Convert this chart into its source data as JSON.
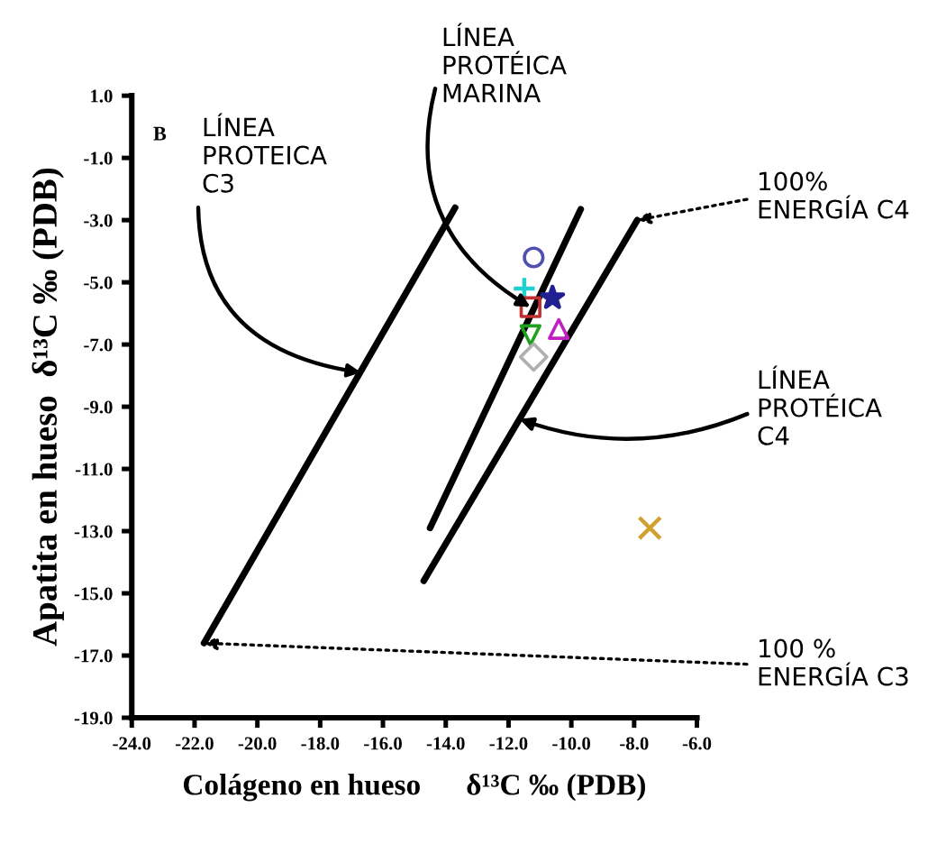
{
  "chart_data": {
    "type": "scatter",
    "xlabel": "Colágeno en hueso      δ¹³C ‰ (PDB)",
    "ylabel": "Apatita en hueso  δ¹³C ‰ (PDB)",
    "xlim": [
      -24.0,
      -6.0
    ],
    "xticks": [
      {
        "value": -24,
        "label": "-24.0"
      },
      {
        "value": -22,
        "label": "-22.0"
      },
      {
        "value": -20,
        "label": "-20.0"
      },
      {
        "value": -18,
        "label": "-18.0"
      },
      {
        "value": -16,
        "label": "-16.0"
      },
      {
        "value": -14,
        "label": "-14.0"
      },
      {
        "value": -12,
        "label": "-12.0"
      },
      {
        "value": -10,
        "label": "-10.0"
      },
      {
        "value": -8,
        "label": "-8.0"
      },
      {
        "value": -6,
        "label": "-6.0"
      }
    ],
    "ylim": [
      -19.0,
      1.0
    ],
    "yticks": [
      {
        "value": 1,
        "label": "1.0"
      },
      {
        "value": -1,
        "label": "-1.0"
      },
      {
        "value": -3,
        "label": "-3.0"
      },
      {
        "value": -5,
        "label": "-5.0"
      },
      {
        "value": -7,
        "label": "-7.0"
      },
      {
        "value": -9,
        "label": "-9.0"
      },
      {
        "value": -11,
        "label": "-11.0"
      },
      {
        "value": -13,
        "label": "-13.0"
      },
      {
        "value": -15,
        "label": "-15.0"
      },
      {
        "value": -17,
        "label": "-17.0"
      },
      {
        "value": -19,
        "label": "-19.0"
      }
    ],
    "grid": false,
    "legend": false,
    "series": [
      {
        "type": "line",
        "color": "#000000",
        "x": [
          -21.7,
          -13.7
        ],
        "values": [
          -16.6,
          -2.6
        ]
      },
      {
        "type": "line",
        "color": "#000000",
        "x": [
          -14.5,
          -9.7
        ],
        "values": [
          -12.9,
          -2.65
        ]
      },
      {
        "type": "line",
        "color": "#000000",
        "x": [
          -14.7,
          -7.9
        ],
        "values": [
          -14.6,
          -3.0
        ]
      },
      {
        "color": "#5050b0",
        "marker": "circle",
        "x": [
          -11.2
        ],
        "values": [
          -4.2
        ]
      },
      {
        "color": "#20d0d0",
        "marker": "plus",
        "x": [
          -11.5
        ],
        "values": [
          -5.2
        ]
      },
      {
        "color": "#202090",
        "marker": "star",
        "x": [
          -10.6
        ],
        "values": [
          -5.5
        ]
      },
      {
        "color": "#c03030",
        "marker": "square",
        "x": [
          -11.3
        ],
        "values": [
          -5.8
        ]
      },
      {
        "color": "#20a020",
        "marker": "triangle-down",
        "x": [
          -11.3
        ],
        "values": [
          -6.7
        ]
      },
      {
        "color": "#c020c0",
        "marker": "triangle",
        "x": [
          -10.4
        ],
        "values": [
          -6.5
        ]
      },
      {
        "color": "#b0b0b0",
        "marker": "diamond",
        "x": [
          -11.2
        ],
        "values": [
          -7.4
        ]
      },
      {
        "color": "#d0a030",
        "marker": "cross",
        "x": [
          -7.5
        ],
        "values": [
          -12.9
        ]
      }
    ],
    "annotations": [
      "B",
      {
        "text": "LÍNEA\nPROTEICA\nC3",
        "x": -16.7,
        "y": -7.9
      },
      {
        "text": "LÍNEA\nPROTÉICA\nMARINA",
        "x": -11.3,
        "y": -5.8
      },
      {
        "text": "100%\nENERGÍA C4",
        "x": -7.9,
        "y": -3.0
      },
      {
        "text": "LÍNEA\nPROTÉICA\nC4",
        "x": -11.65,
        "y": -9.4
      },
      {
        "text": "100 %\nENERGÍA C3",
        "x": -21.7,
        "y": -16.6
      }
    ]
  }
}
